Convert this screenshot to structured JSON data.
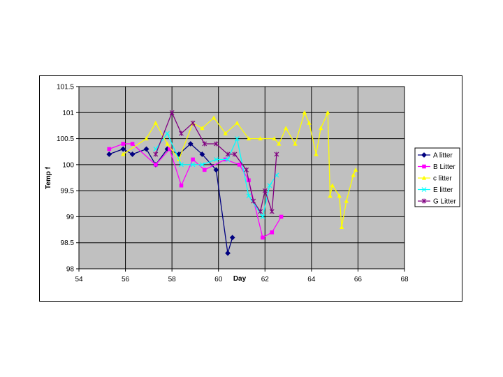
{
  "chart_data": {
    "type": "line",
    "xlabel": "Day",
    "ylabel": "Temp f",
    "xlim": [
      54,
      68
    ],
    "ylim": [
      98,
      101.5
    ],
    "xticks": [
      "54",
      "56",
      "58",
      "60",
      "62",
      "64",
      "66",
      "68"
    ],
    "yticks": [
      "98",
      "98.5",
      "99",
      "99.5",
      "100",
      "100.5",
      "101",
      "101.5"
    ],
    "grid": true,
    "plot_background": "#C0C0C0",
    "legend_position": "right",
    "series": [
      {
        "name": "A litter",
        "color": "#000080",
        "marker": "diamond",
        "points": [
          [
            55.3,
            100.2
          ],
          [
            55.9,
            100.3
          ],
          [
            56.3,
            100.2
          ],
          [
            56.9,
            100.3
          ],
          [
            57.3,
            100.0
          ],
          [
            57.8,
            100.3
          ],
          [
            58.3,
            100.2
          ],
          [
            58.8,
            100.4
          ],
          [
            59.3,
            100.2
          ],
          [
            59.9,
            99.9
          ],
          [
            60.4,
            98.3
          ],
          [
            60.6,
            98.6
          ]
        ]
      },
      {
        "name": "B Litter",
        "color": "#FF00FF",
        "marker": "square",
        "points": [
          [
            55.3,
            100.3
          ],
          [
            55.9,
            100.4
          ],
          [
            56.3,
            100.4
          ],
          [
            57.3,
            100.0
          ],
          [
            57.9,
            100.3
          ],
          [
            58.4,
            99.6
          ],
          [
            58.9,
            100.1
          ],
          [
            59.4,
            99.9
          ],
          [
            60.3,
            100.1
          ],
          [
            60.9,
            100.0
          ],
          [
            61.3,
            99.7
          ],
          [
            61.9,
            98.6
          ],
          [
            62.3,
            98.7
          ],
          [
            62.7,
            99.0
          ]
        ]
      },
      {
        "name": "c litter",
        "color": "#FFFF00",
        "marker": "triangle",
        "points": [
          [
            55.9,
            100.2
          ],
          [
            56.9,
            100.5
          ],
          [
            57.3,
            100.8
          ],
          [
            57.8,
            100.4
          ],
          [
            58.3,
            100.1
          ],
          [
            58.9,
            100.8
          ],
          [
            59.3,
            100.7
          ],
          [
            59.8,
            100.9
          ],
          [
            60.3,
            100.6
          ],
          [
            60.8,
            100.8
          ],
          [
            61.3,
            100.5
          ],
          [
            61.8,
            100.5
          ],
          [
            62.4,
            100.5
          ],
          [
            62.6,
            100.4
          ],
          [
            62.9,
            100.7
          ],
          [
            63.3,
            100.4
          ],
          [
            63.7,
            101.0
          ],
          [
            63.9,
            100.8
          ],
          [
            64.2,
            100.2
          ],
          [
            64.4,
            100.7
          ],
          [
            64.7,
            101.0
          ],
          [
            64.8,
            99.4
          ],
          [
            64.9,
            99.6
          ],
          [
            65.2,
            99.4
          ],
          [
            65.3,
            98.8
          ],
          [
            65.5,
            99.3
          ],
          [
            65.8,
            99.8
          ],
          [
            65.9,
            99.9
          ]
        ]
      },
      {
        "name": "E litter",
        "color": "#00FFFF",
        "marker": "x",
        "points": [
          [
            57.3,
            100.3
          ],
          [
            57.8,
            100.6
          ],
          [
            58.4,
            100.0
          ],
          [
            58.9,
            100.0
          ],
          [
            59.3,
            100.0
          ],
          [
            59.9,
            100.1
          ],
          [
            60.4,
            100.1
          ],
          [
            60.8,
            100.5
          ],
          [
            61.3,
            99.4
          ],
          [
            61.9,
            99.0
          ],
          [
            62.2,
            99.6
          ],
          [
            62.5,
            99.8
          ]
        ]
      },
      {
        "name": "G Litter",
        "color": "#800080",
        "marker": "star",
        "points": [
          [
            57.3,
            100.2
          ],
          [
            58.0,
            101.0
          ],
          [
            58.4,
            100.6
          ],
          [
            58.9,
            100.8
          ],
          [
            59.4,
            100.4
          ],
          [
            59.9,
            100.4
          ],
          [
            60.4,
            100.2
          ],
          [
            60.7,
            100.2
          ],
          [
            61.2,
            99.9
          ],
          [
            61.5,
            99.3
          ],
          [
            61.8,
            99.1
          ],
          [
            62.0,
            99.5
          ],
          [
            62.3,
            99.1
          ],
          [
            62.5,
            100.2
          ]
        ]
      }
    ]
  }
}
